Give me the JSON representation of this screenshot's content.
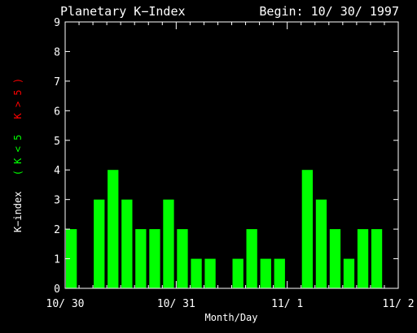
{
  "chart_data": {
    "type": "bar",
    "title": "Planetary K−Index",
    "subtitle": "Begin: 10/ 30/ 1997",
    "xlabel": "Month/Day",
    "ylabel_prefix": "K−index",
    "ylabel_green": "( K < 5",
    "ylabel_red": "K > 5 )",
    "ylim": [
      0,
      9
    ],
    "yticks": [
      "0",
      "1",
      "2",
      "3",
      "4",
      "5",
      "6",
      "7",
      "8",
      "9"
    ],
    "xlim": [
      0,
      72
    ],
    "xticks": [
      {
        "label": "10/ 30",
        "x": 0
      },
      {
        "label": "10/ 31",
        "x": 24
      },
      {
        "label": "11/ 1",
        "x": 48
      },
      {
        "label": "11/ 2",
        "x": 72
      }
    ],
    "interval_hours": 3,
    "values": [
      2,
      0,
      3,
      4,
      3,
      2,
      2,
      3,
      2,
      1,
      1,
      0,
      1,
      2,
      1,
      1,
      0,
      4,
      3,
      2,
      1,
      2,
      2,
      0
    ],
    "colors": {
      "low": "#00ff00",
      "high": "#ff0000",
      "axis": "#ffffff"
    }
  }
}
